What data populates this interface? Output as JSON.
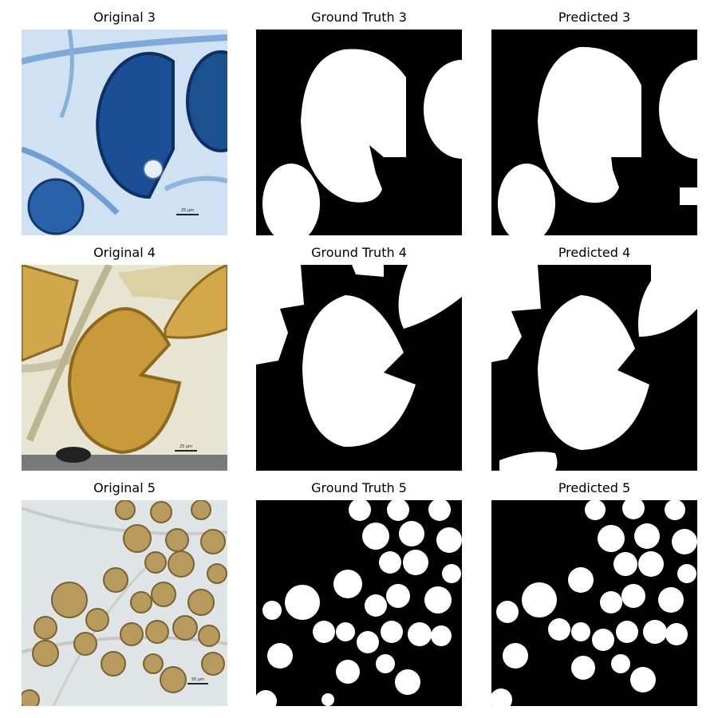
{
  "rows": [
    {
      "original_title": "Original 3",
      "truth_title": "Ground Truth 3",
      "pred_title": "Predicted 3",
      "scale_label": "25 µm"
    },
    {
      "original_title": "Original 4",
      "truth_title": "Ground Truth 4",
      "pred_title": "Predicted 4",
      "scale_label": "25 µm"
    },
    {
      "original_title": "Original 5",
      "truth_title": "Ground Truth 5",
      "pred_title": "Predicted 5",
      "scale_label": "50 µm"
    }
  ],
  "colors": {
    "mask_background": "#000000",
    "mask_foreground": "#ffffff",
    "stain_blue": "#1f5fa8",
    "stain_yellow": "#c9a24a",
    "stain_olive": "#b49a5a"
  }
}
